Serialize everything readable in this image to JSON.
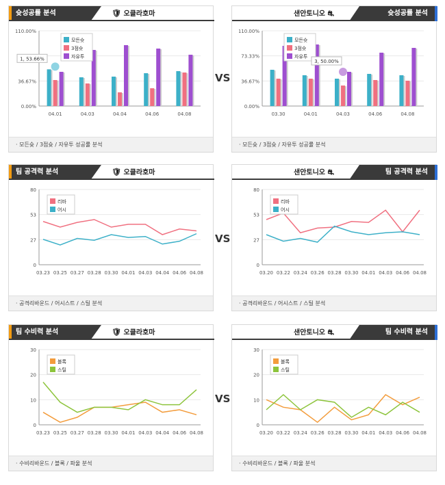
{
  "vs_label": "VS",
  "teams": {
    "left": {
      "name": "오클라호마",
      "icon": "thunder-logo-icon"
    },
    "right": {
      "name": "샌안토니오",
      "icon": "spurs-logo-icon"
    }
  },
  "colors": {
    "header_bar_left": "#f39c12",
    "header_bar_right": "#2d6fd6",
    "all_shot": "#3cb0c8",
    "three_pt": "#f07080",
    "free_throw": "#9e4fd0",
    "rebound": "#f07080",
    "assist": "#3cb0c8",
    "block": "#f39c3c",
    "steal": "#8dc43c"
  },
  "sections": [
    {
      "title": "슛성공률 분석",
      "footer": "· 모든슛 / 3점슛 / 자유투 성공률 분석"
    },
    {
      "title": "팀 공격력 분석",
      "footer": "· 공격리바운드 / 어시스트 / 스틸 분석"
    },
    {
      "title": "팀 수비력 분석",
      "footer": "· 수비리바운드 / 블록 / 파울 분석"
    }
  ],
  "chart_data": [
    {
      "type": "bar",
      "team": "오클라호마",
      "categories": [
        "04.01",
        "04.03",
        "04.04",
        "04.06",
        "04.08"
      ],
      "ylim": [
        0,
        110
      ],
      "yticks": [
        "0.00%",
        "36.67%",
        "73.33%",
        "110.00%"
      ],
      "series": [
        {
          "name": "모든슛",
          "values": [
            53.66,
            42,
            43,
            48,
            51
          ]
        },
        {
          "name": "3점슛",
          "values": [
            38,
            33,
            20,
            26,
            49
          ]
        },
        {
          "name": "자유투",
          "values": [
            50,
            82,
            89,
            84,
            75
          ]
        }
      ],
      "tooltip": "1, 53.66%"
    },
    {
      "type": "bar",
      "team": "샌안토니오",
      "categories": [
        "03.30",
        "04.01",
        "04.03",
        "04.06",
        "04.08"
      ],
      "ylim": [
        0,
        110
      ],
      "yticks": [
        "0.00%",
        "36.67%",
        "73.33%",
        "110.00%"
      ],
      "series": [
        {
          "name": "모든슛",
          "values": [
            53,
            45,
            40,
            47,
            45
          ]
        },
        {
          "name": "3점슛",
          "values": [
            40,
            40,
            30,
            38,
            37
          ]
        },
        {
          "name": "자유투",
          "values": [
            88,
            90,
            50,
            78,
            85
          ]
        }
      ],
      "tooltip": "3, 50.00%"
    },
    {
      "type": "line",
      "team": "오클라호마",
      "categories": [
        "03.23",
        "03.25",
        "03.27",
        "03.28",
        "03.30",
        "04.01",
        "04.03",
        "04.04",
        "04.06",
        "04.08"
      ],
      "ylim": [
        0,
        80
      ],
      "yticks": [
        "0",
        "27",
        "53",
        "80"
      ],
      "series": [
        {
          "name": "리바",
          "values": [
            46,
            40,
            45,
            48,
            40,
            43,
            43,
            32,
            38,
            36
          ]
        },
        {
          "name": "어시",
          "values": [
            27,
            21,
            28,
            26,
            32,
            29,
            30,
            22,
            25,
            33
          ]
        }
      ]
    },
    {
      "type": "line",
      "team": "샌안토니오",
      "categories": [
        "03.20",
        "03.22",
        "03.24",
        "03.26",
        "03.28",
        "03.30",
        "04.01",
        "04.03",
        "04.06",
        "04.08"
      ],
      "ylim": [
        0,
        80
      ],
      "yticks": [
        "0",
        "27",
        "53",
        "80"
      ],
      "series": [
        {
          "name": "리바",
          "values": [
            48,
            55,
            34,
            39,
            40,
            46,
            45,
            58,
            35,
            58
          ]
        },
        {
          "name": "어시",
          "values": [
            32,
            25,
            28,
            24,
            41,
            35,
            32,
            34,
            35,
            32
          ]
        }
      ]
    },
    {
      "type": "line",
      "team": "오클라호마",
      "categories": [
        "03.23",
        "03.25",
        "03.27",
        "03.28",
        "03.30",
        "04.01",
        "04.03",
        "04.04",
        "04.06",
        "04.08"
      ],
      "ylim": [
        0,
        30
      ],
      "yticks": [
        "0",
        "10",
        "20",
        "30"
      ],
      "series": [
        {
          "name": "블록",
          "values": [
            5,
            1,
            3,
            7,
            7,
            8,
            9,
            5,
            6,
            4
          ]
        },
        {
          "name": "스틸",
          "values": [
            17,
            9,
            5,
            7,
            7,
            6,
            10,
            8,
            8,
            14
          ]
        }
      ]
    },
    {
      "type": "line",
      "team": "샌안토니오",
      "categories": [
        "03.20",
        "03.22",
        "03.24",
        "03.26",
        "03.28",
        "03.30",
        "04.01",
        "04.03",
        "04.06",
        "04.08"
      ],
      "ylim": [
        0,
        30
      ],
      "yticks": [
        "0",
        "10",
        "20",
        "30"
      ],
      "series": [
        {
          "name": "블록",
          "values": [
            10,
            7,
            6,
            1,
            7,
            2,
            4,
            12,
            8,
            11
          ]
        },
        {
          "name": "스틸",
          "values": [
            6,
            12,
            6,
            10,
            9,
            3,
            7,
            4,
            9,
            5
          ]
        }
      ]
    }
  ]
}
